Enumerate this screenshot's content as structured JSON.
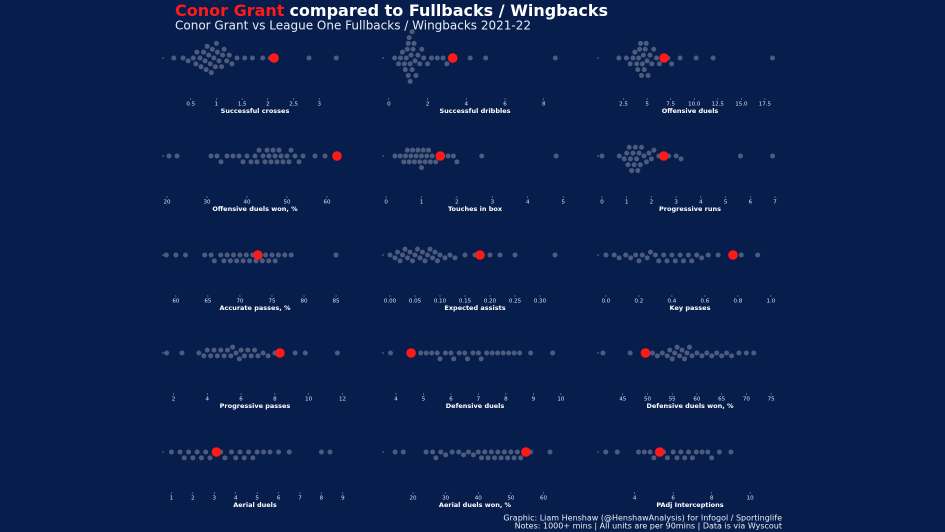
{
  "header": {
    "title_name": "Conor Grant",
    "title_text": "compared to Fullbacks / Wingbacks",
    "subtitle": "Conor Grant vs League One Fullbacks / Wingbacks 2021-22"
  },
  "footer": {
    "credit": "Graphic: Liam Henshaw (@HenshawAnalysis) for Infogol / Sportinglife",
    "notes": "Notes: 1000+ mins | All units are per 90mins | Data is via Wyscout"
  },
  "chart_data": [
    {
      "type": "swarm",
      "xlabel": "Successful crosses",
      "xlim": [
        0,
        3.5
      ],
      "xticks": [
        0.5,
        1.0,
        1.5,
        2.0,
        2.5,
        3.0
      ],
      "color": "#4d5b7c",
      "highlight_color": "#ff1a1a",
      "highlight_value": 2.12,
      "values": [
        0.17,
        0.35,
        0.45,
        0.55,
        0.6,
        0.62,
        0.68,
        0.7,
        0.75,
        0.78,
        0.8,
        0.82,
        0.85,
        0.88,
        0.9,
        0.92,
        0.95,
        0.98,
        1.0,
        1.02,
        1.05,
        1.1,
        1.12,
        1.15,
        1.2,
        1.25,
        1.3,
        1.4,
        1.55,
        1.7,
        1.9,
        2.05,
        2.8,
        3.33
      ]
    },
    {
      "type": "swarm",
      "xlabel": "Successful dribbles",
      "xlim": [
        -0.2,
        9.1
      ],
      "xticks": [
        0,
        2,
        4,
        6,
        8
      ],
      "color": "#4d5b7c",
      "highlight_color": "#ff1a1a",
      "highlight_value": 3.3,
      "values": [
        0.3,
        0.5,
        0.6,
        0.7,
        0.8,
        0.85,
        0.9,
        0.95,
        1.0,
        1.0,
        1.05,
        1.1,
        1.1,
        1.15,
        1.2,
        1.2,
        1.25,
        1.3,
        1.35,
        1.4,
        1.5,
        1.6,
        1.7,
        1.8,
        2.0,
        2.2,
        2.5,
        2.8,
        3.0,
        4.2,
        5.0,
        8.6
      ]
    },
    {
      "type": "swarm",
      "xlabel": "Offensive duels",
      "xlim": [
        0,
        19.1
      ],
      "xticks": [
        2.5,
        5.0,
        7.5,
        {
          "value": 10,
          "label": "10.0"
        },
        12.5,
        {
          "value": 15,
          "label": "15.0"
        },
        17.5
      ],
      "color": "#4d5b7c",
      "highlight_color": "#ff1a1a",
      "highlight_value": 6.8,
      "values": [
        2.0,
        2.8,
        3.2,
        3.5,
        3.7,
        3.9,
        4.0,
        4.1,
        4.2,
        4.3,
        4.4,
        4.5,
        4.6,
        4.7,
        4.8,
        4.9,
        5.0,
        5.1,
        5.3,
        5.5,
        5.7,
        6.0,
        6.3,
        6.6,
        7.2,
        7.6,
        8.5,
        10.2,
        12.0,
        18.3
      ]
    },
    {
      "type": "swarm",
      "xlabel": "Offensive duels won, %",
      "xlim": [
        19.5,
        64.5
      ],
      "xticks": [
        20,
        30,
        40,
        50,
        60
      ],
      "color": "#4d5b7c",
      "highlight_color": "#ff1a1a",
      "highlight_value": 62.5,
      "values": [
        20.5,
        22.5,
        31,
        32.5,
        33.5,
        35,
        36.5,
        38,
        39,
        40,
        41,
        42,
        42.5,
        43,
        44,
        44.5,
        45,
        45.5,
        46,
        46.5,
        47,
        47.5,
        48,
        48.5,
        49,
        50,
        50.5,
        51,
        52,
        53,
        54,
        57,
        59.5
      ]
    },
    {
      "type": "swarm",
      "xlabel": "Touches in box",
      "xlim": [
        -0.03,
        5.05
      ],
      "xticks": [
        0,
        1,
        2,
        3,
        4,
        5
      ],
      "color": "#4d5b7c",
      "highlight_color": "#ff1a1a",
      "highlight_value": 1.53,
      "values": [
        0.25,
        0.4,
        0.5,
        0.55,
        0.6,
        0.65,
        0.7,
        0.75,
        0.8,
        0.85,
        0.9,
        0.95,
        1.0,
        1.0,
        1.05,
        1.1,
        1.15,
        1.2,
        1.25,
        1.3,
        1.4,
        1.6,
        1.75,
        1.9,
        2.0,
        2.7,
        4.8
      ]
    },
    {
      "type": "swarm",
      "xlabel": "Progressive runs",
      "xlim": [
        -0.08,
        7.2
      ],
      "xticks": [
        0,
        1,
        2,
        3,
        4,
        5,
        6,
        7
      ],
      "color": "#4d5b7c",
      "highlight_color": "#ff1a1a",
      "highlight_value": 2.5,
      "values": [
        0.0,
        0.7,
        0.9,
        1.0,
        1.05,
        1.1,
        1.15,
        1.2,
        1.25,
        1.3,
        1.35,
        1.4,
        1.45,
        1.5,
        1.55,
        1.6,
        1.7,
        1.8,
        1.9,
        2.0,
        2.1,
        2.3,
        2.7,
        3.0,
        3.2,
        5.6,
        6.9
      ]
    },
    {
      "type": "swarm",
      "xlabel": "Accurate passes, %",
      "xlim": [
        58.3,
        86.4
      ],
      "xticks": [
        60,
        65,
        70,
        75,
        80,
        85
      ],
      "color": "#4d5b7c",
      "highlight_color": "#ff1a1a",
      "highlight_value": 72.8,
      "values": [
        58.5,
        60,
        61.5,
        64.5,
        65.5,
        66,
        67,
        67.5,
        68,
        68.5,
        69,
        69.5,
        70,
        70.5,
        71,
        71.5,
        72,
        72.5,
        73,
        73.5,
        74,
        74.5,
        75,
        75.5,
        76,
        77,
        78,
        85
      ]
    },
    {
      "type": "swarm",
      "xlabel": "Expected assists",
      "xlim": [
        -0.01,
        0.35
      ],
      "xticks": [
        {
          "value": 0,
          "label": "0.00"
        },
        0.05,
        {
          "value": 0.1,
          "label": "0.10"
        },
        0.15,
        {
          "value": 0.2,
          "label": "0.20"
        },
        0.25,
        {
          "value": 0.3,
          "label": "0.30"
        }
      ],
      "color": "#4d5b7c",
      "highlight_color": "#ff1a1a",
      "highlight_value": 0.18,
      "values": [
        0.0,
        0.01,
        0.015,
        0.02,
        0.025,
        0.03,
        0.035,
        0.04,
        0.045,
        0.05,
        0.055,
        0.06,
        0.065,
        0.07,
        0.075,
        0.08,
        0.085,
        0.09,
        0.095,
        0.1,
        0.11,
        0.12,
        0.13,
        0.15,
        0.17,
        0.2,
        0.22,
        0.25,
        0.33
      ]
    },
    {
      "type": "swarm",
      "xlabel": "Key passes",
      "xlim": [
        -0.036,
        1.055
      ],
      "xticks": [
        {
          "value": 0,
          "label": "0.0"
        },
        0.2,
        0.4,
        0.6,
        0.8,
        {
          "value": 1,
          "label": "1.0"
        }
      ],
      "color": "#4d5b7c",
      "highlight_color": "#ff1a1a",
      "highlight_value": 0.77,
      "values": [
        0.0,
        0.05,
        0.08,
        0.12,
        0.15,
        0.18,
        0.2,
        0.22,
        0.25,
        0.27,
        0.3,
        0.32,
        0.35,
        0.37,
        0.4,
        0.42,
        0.45,
        0.47,
        0.5,
        0.52,
        0.55,
        0.58,
        0.62,
        0.68,
        0.82,
        0.92
      ]
    },
    {
      "type": "swarm",
      "xlabel": "Progressive passes",
      "xlim": [
        1.5,
        12.15
      ],
      "xticks": [
        2,
        4,
        6,
        8,
        10,
        12
      ],
      "color": "#4d5b7c",
      "highlight_color": "#ff1a1a",
      "highlight_value": 8.3,
      "values": [
        1.6,
        2.5,
        3.5,
        3.8,
        4.0,
        4.2,
        4.4,
        4.6,
        4.8,
        5.0,
        5.2,
        5.4,
        5.5,
        5.7,
        5.9,
        6.0,
        6.2,
        6.4,
        6.6,
        6.8,
        7.0,
        7.3,
        7.6,
        8.0,
        9.2,
        9.8,
        11.7
      ]
    },
    {
      "type": "swarm",
      "xlabel": "Defensive duels",
      "xlim": [
        3.6,
        10.15
      ],
      "xticks": [
        4,
        5,
        6,
        7,
        8,
        9,
        10
      ],
      "color": "#4d5b7c",
      "highlight_color": "#ff1a1a",
      "highlight_value": 4.55,
      "values": [
        3.8,
        4.9,
        5.1,
        5.3,
        5.5,
        5.6,
        5.8,
        6.0,
        6.1,
        6.3,
        6.5,
        6.6,
        6.8,
        7.0,
        7.1,
        7.3,
        7.5,
        7.7,
        7.9,
        8.1,
        8.3,
        8.5,
        8.9,
        9.7
      ]
    },
    {
      "type": "swarm",
      "xlabel": "Defensive duels won, %",
      "xlim": [
        40.4,
        76.8
      ],
      "xticks": [
        45,
        50,
        55,
        60,
        65,
        70,
        75
      ],
      "color": "#4d5b7c",
      "highlight_color": "#ff1a1a",
      "highlight_value": 49.6,
      "values": [
        41,
        46.5,
        51,
        52,
        53,
        54,
        54.5,
        55,
        55.5,
        56,
        56.5,
        57,
        57.5,
        58,
        58.5,
        59,
        60,
        61,
        62,
        63,
        64,
        65,
        66,
        67,
        68.5,
        70,
        71.5
      ]
    },
    {
      "type": "swarm",
      "xlabel": "Aerial duels",
      "xlim": [
        0.7,
        9.1
      ],
      "xticks": [
        1,
        2,
        3,
        4,
        5,
        6,
        7,
        8,
        9
      ],
      "color": "#4d5b7c",
      "highlight_color": "#ff1a1a",
      "highlight_value": 3.1,
      "values": [
        1.0,
        1.4,
        1.6,
        1.8,
        2.0,
        2.2,
        2.4,
        2.6,
        2.8,
        3.0,
        3.3,
        3.5,
        3.8,
        4.0,
        4.2,
        4.4,
        4.6,
        4.8,
        5.0,
        5.3,
        5.6,
        6.0,
        6.5,
        8.0,
        8.4
      ]
    },
    {
      "type": "swarm",
      "xlabel": "Aerial duels won, %",
      "xlim": [
        11.4,
        66.6
      ],
      "xticks": [
        20,
        30,
        40,
        50,
        60
      ],
      "color": "#4d5b7c",
      "highlight_color": "#ff1a1a",
      "highlight_value": 54.6,
      "values": [
        14.5,
        17,
        24,
        26,
        27,
        28.5,
        30,
        32,
        34,
        35.5,
        37,
        38.5,
        40,
        41,
        42,
        43,
        44,
        45,
        46,
        47,
        48,
        49,
        50,
        51,
        52,
        53,
        56,
        62
      ]
    },
    {
      "type": "swarm",
      "xlabel": "PAdj Interceptions",
      "xlim": [
        2.2,
        11.55
      ],
      "xticks": [
        4,
        6,
        8,
        10
      ],
      "color": "#4d5b7c",
      "highlight_color": "#ff1a1a",
      "highlight_value": 5.3,
      "values": [
        2.5,
        3.1,
        4.2,
        4.5,
        4.8,
        5.0,
        5.2,
        5.5,
        5.7,
        6.0,
        6.2,
        6.4,
        6.6,
        6.8,
        7.0,
        7.2,
        7.5,
        7.8,
        8.0,
        8.4,
        9.0
      ]
    }
  ]
}
